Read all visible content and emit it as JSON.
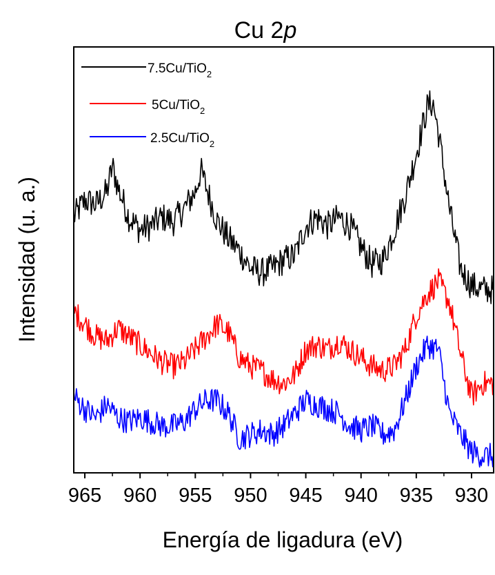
{
  "chart_data": {
    "type": "line",
    "title": {
      "main": "Cu 2",
      "italic": "p"
    },
    "xlabel": "Energía de ligadura (eV)",
    "ylabel": "Intensidad (u. a.)",
    "x_reversed": true,
    "xlim": [
      966,
      928
    ],
    "ylim": [
      0,
      1
    ],
    "x_ticks": [
      965,
      960,
      955,
      950,
      945,
      940,
      935,
      930
    ],
    "y_ticks_shown": false,
    "grid": false,
    "legend_position": "top-left",
    "series": [
      {
        "name": "7.5Cu/TiO2",
        "label_main": "7.5Cu/TiO",
        "label_sub": "2",
        "color": "#000000",
        "x": [
          966,
          965,
          964,
          963,
          962.5,
          962,
          961,
          960,
          959,
          958,
          957,
          956,
          955,
          954.5,
          954,
          953,
          952,
          951,
          950,
          949,
          948,
          947,
          946,
          945,
          944,
          943,
          942,
          941,
          940,
          939,
          938,
          937,
          936,
          935,
          934,
          933.5,
          933,
          932,
          931,
          930,
          929,
          928
        ],
        "y": [
          0.6,
          0.64,
          0.63,
          0.66,
          0.72,
          0.67,
          0.6,
          0.57,
          0.58,
          0.6,
          0.59,
          0.62,
          0.66,
          0.71,
          0.67,
          0.59,
          0.55,
          0.52,
          0.48,
          0.47,
          0.48,
          0.5,
          0.51,
          0.58,
          0.6,
          0.58,
          0.6,
          0.58,
          0.53,
          0.49,
          0.5,
          0.57,
          0.65,
          0.75,
          0.86,
          0.87,
          0.8,
          0.62,
          0.48,
          0.44,
          0.43,
          0.43
        ]
      },
      {
        "name": "5Cu/TiO2",
        "label_main": "5Cu/TiO",
        "label_sub": "2",
        "color": "#ff0000",
        "x": [
          966,
          965,
          964,
          963,
          962,
          961,
          960,
          959,
          958,
          957,
          956,
          955,
          954,
          953,
          952,
          951,
          950,
          949,
          948,
          947,
          946,
          945,
          944,
          943,
          942,
          941,
          940,
          939,
          938,
          937,
          936,
          935,
          934,
          933,
          932,
          931,
          930,
          929,
          928
        ],
        "y": [
          0.38,
          0.35,
          0.32,
          0.31,
          0.34,
          0.32,
          0.3,
          0.28,
          0.26,
          0.25,
          0.26,
          0.29,
          0.32,
          0.35,
          0.33,
          0.27,
          0.25,
          0.24,
          0.22,
          0.21,
          0.23,
          0.29,
          0.3,
          0.29,
          0.31,
          0.29,
          0.27,
          0.25,
          0.24,
          0.25,
          0.29,
          0.37,
          0.42,
          0.45,
          0.4,
          0.28,
          0.18,
          0.21,
          0.21
        ]
      },
      {
        "name": "2.5Cu/TiO2",
        "label_main": "2.5Cu/TiO",
        "label_sub": "2",
        "color": "#0000ff",
        "x": [
          966,
          965,
          964,
          963,
          962,
          961,
          960,
          959,
          958,
          957,
          956,
          955,
          954,
          953,
          952,
          951,
          950,
          949,
          948,
          947,
          946,
          945,
          944,
          943,
          942,
          941,
          940,
          939,
          938,
          937,
          936,
          935,
          934,
          933,
          932,
          931,
          930,
          929,
          928
        ],
        "y": [
          0.18,
          0.15,
          0.13,
          0.16,
          0.13,
          0.12,
          0.13,
          0.12,
          0.11,
          0.11,
          0.12,
          0.15,
          0.17,
          0.17,
          0.14,
          0.08,
          0.09,
          0.1,
          0.09,
          0.11,
          0.14,
          0.17,
          0.16,
          0.15,
          0.14,
          0.11,
          0.1,
          0.11,
          0.09,
          0.1,
          0.17,
          0.25,
          0.3,
          0.29,
          0.14,
          0.09,
          0.05,
          0.04,
          0.04
        ]
      }
    ]
  }
}
